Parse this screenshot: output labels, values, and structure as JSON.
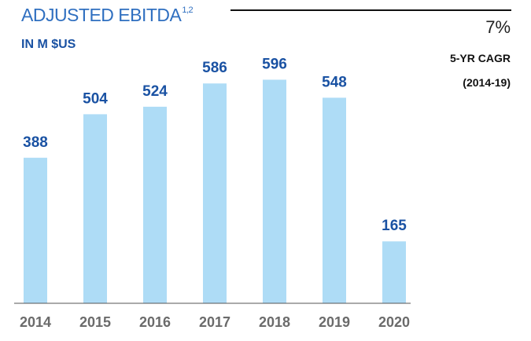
{
  "header": {
    "title": "ADJUSTED EBITDA",
    "title_superscript": "1,2",
    "unit": "IN M $US"
  },
  "cagr": {
    "value": "7%",
    "label": "5-YR CAGR",
    "period": "(2014-19)"
  },
  "colors": {
    "bar": "#aedcf6",
    "title": "#2f6fc0",
    "value_label": "#1a52a3",
    "axis_label": "#6b6b6b",
    "axis_line": "#555555"
  },
  "chart_data": {
    "type": "bar",
    "title": "ADJUSTED EBITDA",
    "ylabel": "IN M $US",
    "categories": [
      "2014",
      "2015",
      "2016",
      "2017",
      "2018",
      "2019",
      "2020"
    ],
    "values": [
      388,
      504,
      524,
      586,
      596,
      548,
      165
    ],
    "ylim": [
      0,
      620
    ],
    "grid": false,
    "data_labels": true
  }
}
